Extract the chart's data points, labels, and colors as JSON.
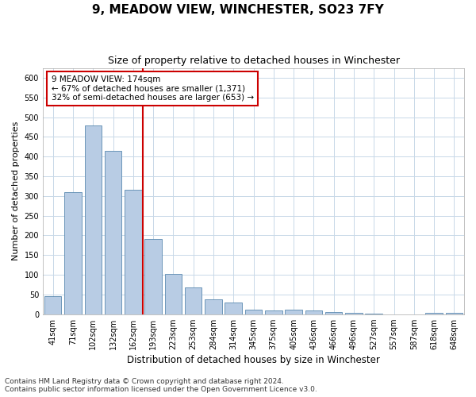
{
  "title": "9, MEADOW VIEW, WINCHESTER, SO23 7FY",
  "subtitle": "Size of property relative to detached houses in Winchester",
  "xlabel": "Distribution of detached houses by size in Winchester",
  "ylabel": "Number of detached properties",
  "categories": [
    "41sqm",
    "71sqm",
    "102sqm",
    "132sqm",
    "162sqm",
    "193sqm",
    "223sqm",
    "253sqm",
    "284sqm",
    "314sqm",
    "345sqm",
    "375sqm",
    "405sqm",
    "436sqm",
    "466sqm",
    "496sqm",
    "527sqm",
    "557sqm",
    "587sqm",
    "618sqm",
    "648sqm"
  ],
  "values": [
    45,
    310,
    480,
    415,
    315,
    190,
    103,
    68,
    37,
    30,
    12,
    10,
    12,
    10,
    6,
    4,
    1,
    0,
    0,
    3,
    3
  ],
  "bar_color": "#b8cce4",
  "bar_edge_color": "#5a8ab0",
  "grid_color": "#c8d8e8",
  "red_line_color": "#cc0000",
  "annotation_text": "9 MEADOW VIEW: 174sqm\n← 67% of detached houses are smaller (1,371)\n32% of semi-detached houses are larger (653) →",
  "annotation_box_color": "#ffffff",
  "annotation_box_edge_color": "#cc0000",
  "ylim": [
    0,
    625
  ],
  "yticks": [
    0,
    50,
    100,
    150,
    200,
    250,
    300,
    350,
    400,
    450,
    500,
    550,
    600
  ],
  "footnote1": "Contains HM Land Registry data © Crown copyright and database right 2024.",
  "footnote2": "Contains public sector information licensed under the Open Government Licence v3.0.",
  "title_fontsize": 11,
  "subtitle_fontsize": 9,
  "xlabel_fontsize": 8.5,
  "ylabel_fontsize": 8,
  "tick_fontsize": 7,
  "annotation_fontsize": 7.5,
  "footnote_fontsize": 6.5
}
